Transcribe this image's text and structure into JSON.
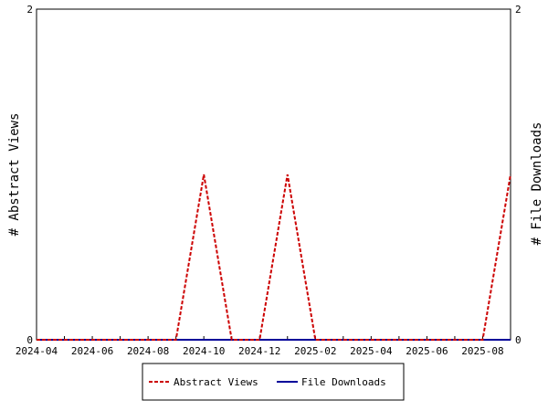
{
  "chart_data": {
    "type": "line",
    "x_tick_labels": [
      "2024-04",
      "2024-06",
      "2024-08",
      "2024-10",
      "2024-12",
      "2025-02",
      "2025-04",
      "2025-06",
      "2025-08"
    ],
    "x_ticks": [
      "2024-04",
      "2024-05",
      "2024-06",
      "2024-07",
      "2024-08",
      "2024-09",
      "2024-10",
      "2024-11",
      "2024-12",
      "2025-01",
      "2025-02",
      "2025-03",
      "2025-04",
      "2025-05",
      "2025-06",
      "2025-07",
      "2025-08",
      "2025-09"
    ],
    "xlim": [
      "2024-04",
      "2025-09"
    ],
    "y_left_label": "# Abstract Views",
    "y_right_label": "# File Downloads",
    "y_left_ticks": [
      "0",
      "2"
    ],
    "y_right_ticks": [
      "0",
      "2"
    ],
    "ylim": [
      0,
      2
    ],
    "legend_position": "bottom",
    "series": [
      {
        "name": "Abstract Views",
        "axis": "left",
        "color": "#cc0000",
        "dash": true,
        "x": [
          "2024-04",
          "2024-05",
          "2024-06",
          "2024-07",
          "2024-08",
          "2024-09",
          "2024-10",
          "2024-11",
          "2024-12",
          "2025-01",
          "2025-02",
          "2025-03",
          "2025-04",
          "2025-05",
          "2025-06",
          "2025-07",
          "2025-08",
          "2025-09"
        ],
        "values": [
          0,
          0,
          0,
          0,
          0,
          0,
          1,
          0,
          0,
          1,
          0,
          0,
          0,
          0,
          0,
          0,
          0,
          1
        ]
      },
      {
        "name": "File Downloads",
        "axis": "right",
        "color": "#000099",
        "dash": false,
        "x": [
          "2024-04",
          "2024-05",
          "2024-06",
          "2024-07",
          "2024-08",
          "2024-09",
          "2024-10",
          "2024-11",
          "2024-12",
          "2025-01",
          "2025-02",
          "2025-03",
          "2025-04",
          "2025-05",
          "2025-06",
          "2025-07",
          "2025-08",
          "2025-09"
        ],
        "values": [
          0,
          0,
          0,
          0,
          0,
          0,
          0,
          0,
          0,
          0,
          0,
          0,
          0,
          0,
          0,
          0,
          0,
          0
        ]
      }
    ]
  }
}
